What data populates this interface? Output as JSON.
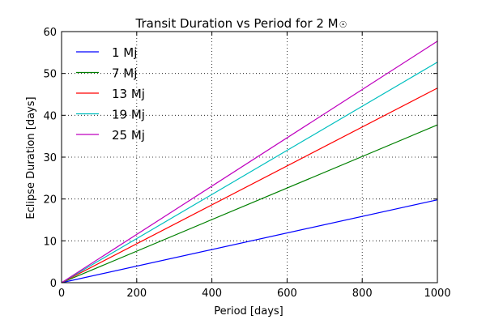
{
  "chart_data": {
    "type": "line",
    "title": "Transit Duration vs Period for 2 M",
    "title_symbol": "☉",
    "xlabel": "Period [days]",
    "ylabel": "Eclipse Duration [days]",
    "xlim": [
      0,
      1000
    ],
    "ylim": [
      0,
      60
    ],
    "xticks": [
      0,
      200,
      400,
      600,
      800,
      1000
    ],
    "yticks": [
      0,
      10,
      20,
      30,
      40,
      50,
      60
    ],
    "grid": true,
    "legend_position": "top-left",
    "series": [
      {
        "name": "1 Mj",
        "color": "#0000ff",
        "x": [
          0,
          1000
        ],
        "y": [
          0,
          19.8
        ]
      },
      {
        "name": "7 Mj",
        "color": "#008000",
        "x": [
          0,
          1000
        ],
        "y": [
          0,
          37.7
        ]
      },
      {
        "name": "13 Mj",
        "color": "#ff0000",
        "x": [
          0,
          1000
        ],
        "y": [
          0,
          46.5
        ]
      },
      {
        "name": "19 Mj",
        "color": "#00bfbf",
        "x": [
          0,
          1000
        ],
        "y": [
          0,
          52.7
        ]
      },
      {
        "name": "25 Mj",
        "color": "#bf00bf",
        "x": [
          0,
          1000
        ],
        "y": [
          0,
          57.7
        ]
      }
    ]
  }
}
